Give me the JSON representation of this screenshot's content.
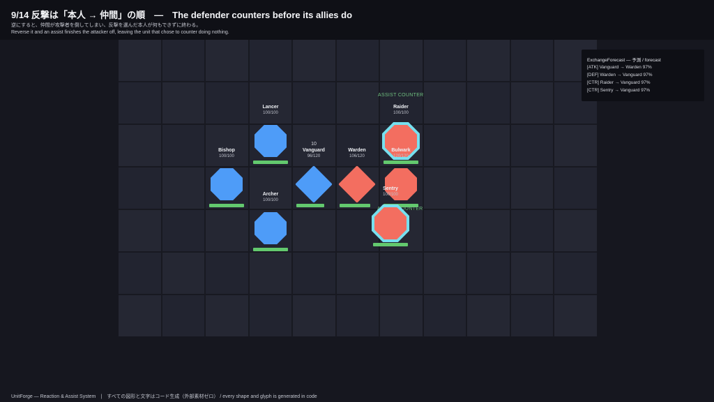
{
  "header": {
    "title": "9/14  反撃は「本人 → 仲間」の順　—　The defender counters before its allies do",
    "subtitle_ja": "逆にすると、仲間が攻撃者を倒してしまい、反撃を選んだ本人が何もできずに終わる。",
    "subtitle_en": "Reverse it and an assist finishes the attacker off, leaving the unit that chose to counter doing nothing."
  },
  "units": [
    {
      "id": "lancer",
      "name": "Lancer",
      "hp": "100/100",
      "hp_ratio": 1.0,
      "team": "ally",
      "shape": "octagon",
      "color": "#4e9cf8"
    },
    {
      "id": "bishop",
      "name": "Bishop",
      "hp": "100/100",
      "hp_ratio": 1.0,
      "team": "ally",
      "shape": "octagon",
      "color": "#4e9cf8"
    },
    {
      "id": "archer",
      "name": "Archer",
      "hp": "100/100",
      "hp_ratio": 1.0,
      "team": "ally",
      "shape": "octagon",
      "color": "#4e9cf8"
    },
    {
      "id": "vanguard",
      "name": "Vanguard",
      "hp": "96/120",
      "hp_ratio": 0.8,
      "team": "ally",
      "shape": "diamond",
      "color": "#4e9cf8",
      "damage": "10"
    },
    {
      "id": "warden",
      "name": "Warden",
      "hp": "106/120",
      "hp_ratio": 0.88,
      "team": "enemy",
      "shape": "diamond",
      "color": "#f36e60"
    },
    {
      "id": "raider",
      "name": "Raider",
      "hp": "100/100",
      "hp_ratio": 1.0,
      "team": "enemy",
      "shape": "octagon",
      "color": "#f36e60",
      "highlight": "#76e0ef"
    },
    {
      "id": "bulwark",
      "name": "Bulwark",
      "hp": "120/120",
      "hp_ratio": 1.0,
      "team": "enemy",
      "shape": "octagon",
      "color": "#f36e60"
    },
    {
      "id": "sentry",
      "name": "Sentry",
      "hp": "100/100",
      "hp_ratio": 1.0,
      "team": "enemy",
      "shape": "octagon",
      "color": "#f36e60",
      "highlight": "#76e0ef"
    }
  ],
  "assist_labels": [
    "ASSIST COUNTER",
    "ASSIST COUNTER"
  ],
  "forecast": {
    "title": "ExchangeForecast — 予測 / forecast",
    "rows": [
      "[ATK]  Vanguard  →  Warden  97%",
      "[DEF]  Warden  →  Vanguard  97%",
      "[CTR]  Raider  →  Vanguard  97%",
      "[CTR]  Sentry  →  Vanguard  97%"
    ]
  },
  "footer": "UnitForge — Reaction & Assist System　|　すべての図形と文字はコード生成（外部素材ゼロ） / every shape and glyph is generated in code",
  "colors": {
    "ally": "#4e9cf8",
    "enemy": "#f36e60",
    "hp_bar": "#63c96e",
    "highlight": "#76e0ef",
    "assist": "#6fbf7f"
  }
}
